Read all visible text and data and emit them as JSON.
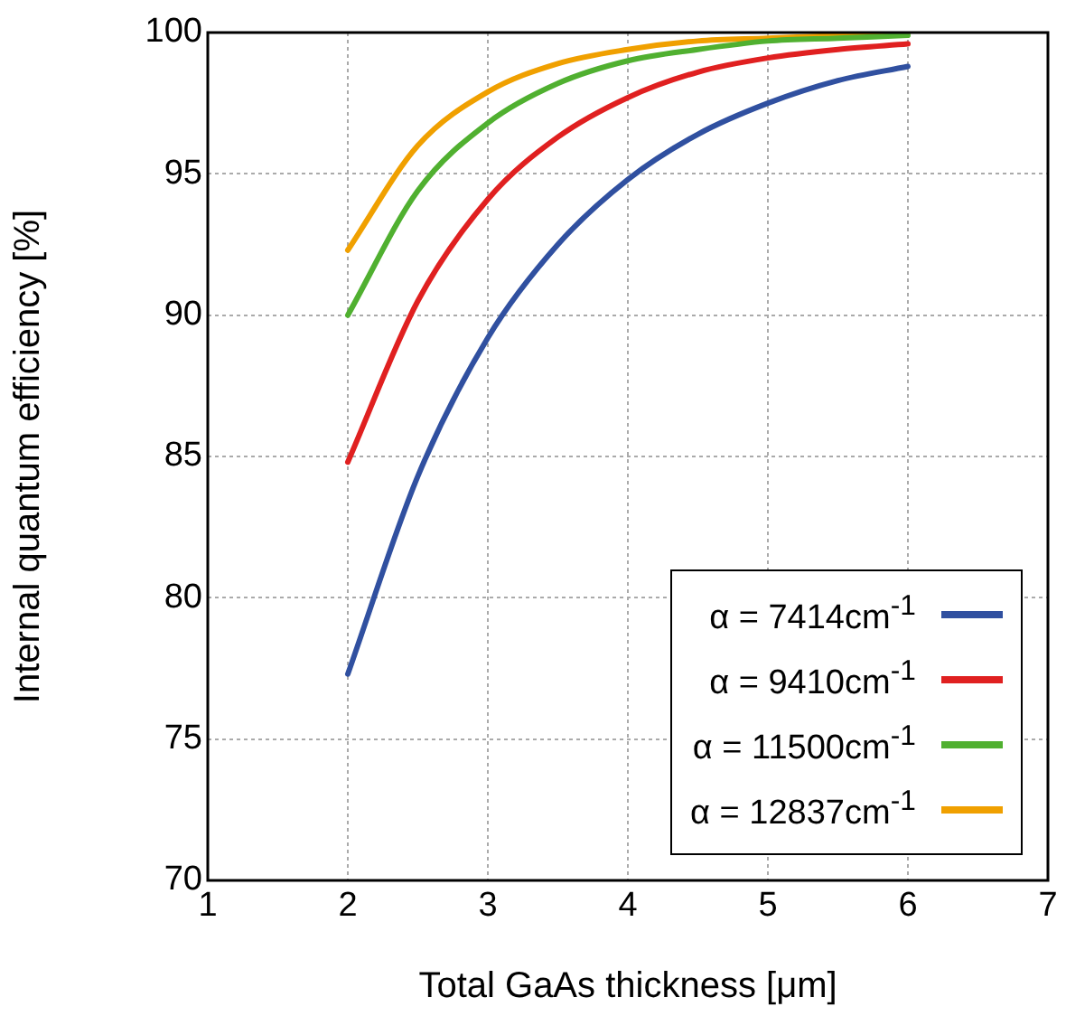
{
  "chart_data": {
    "type": "line",
    "xlabel": "Total GaAs thickness [μm]",
    "ylabel": "Internal quantum efficiency [%]",
    "x": [
      2,
      2.5,
      3,
      3.5,
      4,
      4.5,
      5,
      5.5,
      6
    ],
    "series": [
      {
        "name": "α = 7414cm$^{-1}$",
        "color": "#3050a0",
        "values": [
          77.3,
          84.3,
          89.2,
          92.5,
          94.8,
          96.4,
          97.5,
          98.3,
          98.8
        ]
      },
      {
        "name": "α = 9410cm$^{-1}$",
        "color": "#e02020",
        "values": [
          84.8,
          90.5,
          94.1,
          96.3,
          97.7,
          98.6,
          99.1,
          99.4,
          99.6
        ]
      },
      {
        "name": "α = 11500cm$^{-1}$",
        "color": "#50b030",
        "values": [
          90.0,
          94.4,
          96.8,
          98.2,
          99.0,
          99.4,
          99.7,
          99.8,
          99.9
        ]
      },
      {
        "name": "α = 12837cm$^{-1}$",
        "color": "#f0a000",
        "values": [
          92.3,
          96.0,
          97.9,
          98.9,
          99.4,
          99.7,
          99.8,
          99.9,
          100.0
        ]
      }
    ],
    "xlim": [
      1,
      7
    ],
    "xticks": [
      1,
      2,
      3,
      4,
      5,
      6,
      7
    ],
    "ylim": [
      70,
      100
    ],
    "yticks": [
      70,
      75,
      80,
      85,
      90,
      95,
      100
    ],
    "grid": true,
    "legend": "bottom right",
    "marker": "none",
    "line_style": "solid"
  }
}
